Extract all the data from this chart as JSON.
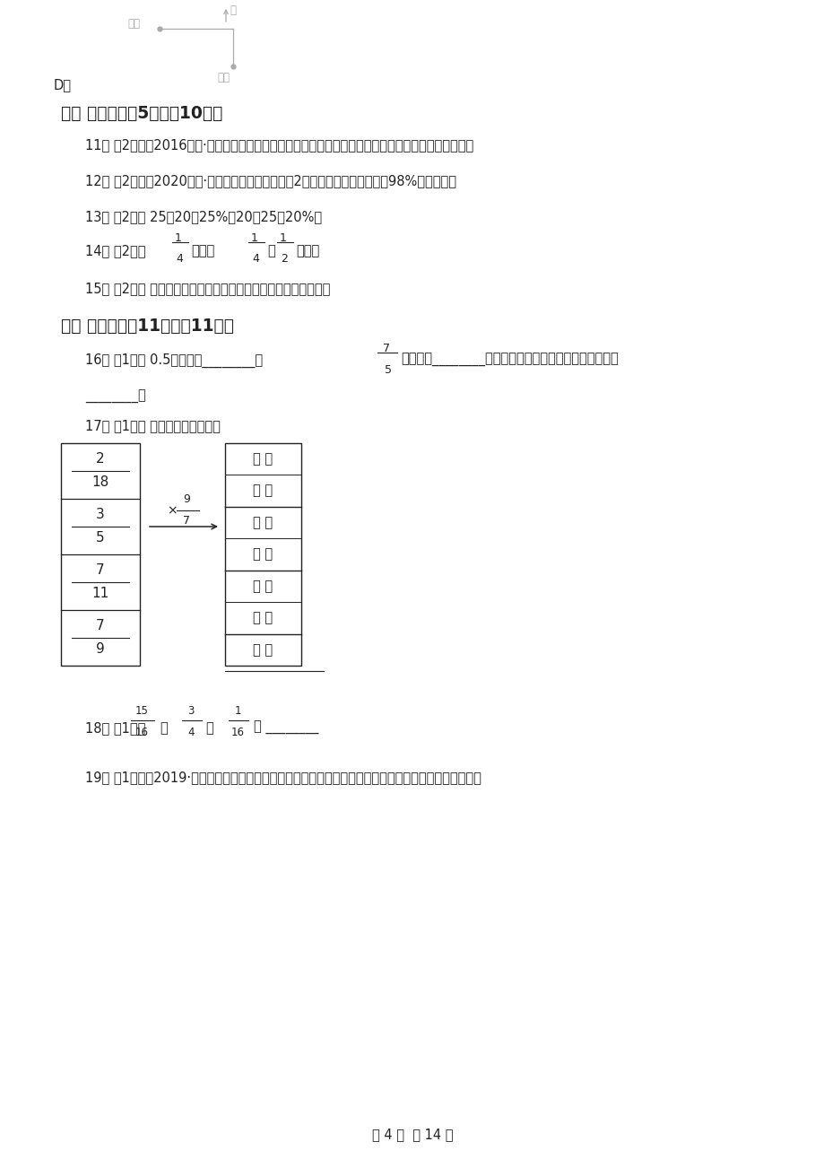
{
  "bg_color": "#ffffff",
  "text_color": "#222222",
  "light_gray": "#aaaaaa",
  "page_width": 9.2,
  "page_height": 13.02,
  "footer_text": "第 4 页  共 14 页",
  "section2_title": "二、 判断题（共5题；共10分）",
  "section3_title": "三、 填空题（共11题；共11分）",
  "q11": "11． （2分）（2016六下·庆阳月考）在比例里，两个外项的积等于两个内项的积．这是比的基本性质．",
  "q12": "12． （2分）（2020六上·天峨期末）六一班今天有2人请假，今天的出勤率是98%．（　　）",
  "q13": "13． （2分） 25比20多25%，20比25刁20%．",
  "q15": "15． （2分） 扇形是圆的一部分，所以扇形的面积小于圆的面积。",
  "q16_a": "16． （1分） 0.5的倒数是________，",
  "q16_b": "的倒数是________，最小的质数和最小合数的积的倒数是",
  "q16_blank": "________．",
  "q17_intro": "17． （1分） 比一比，谁填得快．",
  "q18_prefix": "18． （1分）",
  "q18_eq": "＝ ________",
  "q19": "19． （1分）（2019·孝感）在下图中所示的直线上填数。上面的口里填分数，下面的口里填整数或小数。",
  "map_lele": "乐乐",
  "map_north": "北",
  "map_park": "公园",
  "map_D": "D．",
  "q14_prefix": "14． （2分）",
  "q14_mid": "小时的",
  "q14_is": "是",
  "q14_suffix": "小时。"
}
